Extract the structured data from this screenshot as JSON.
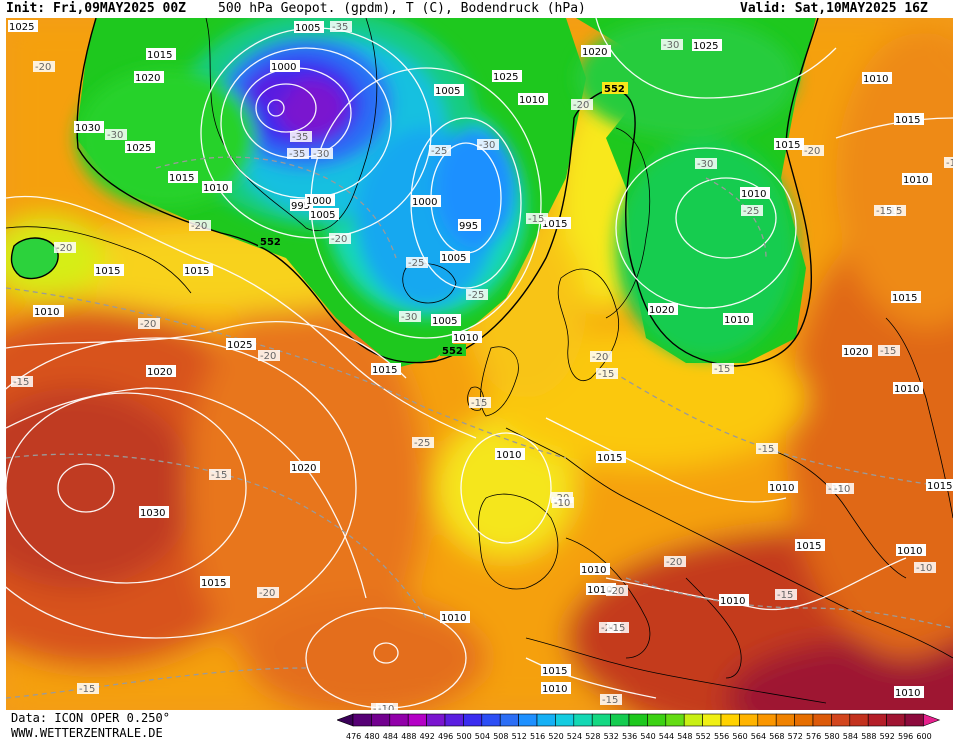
{
  "header": {
    "init": "Init: Fri,09MAY2025 00Z",
    "title": "500 hPa Geopot. (gpdm), T (C), Bodendruck (hPa)",
    "valid": "Valid: Sat,10MAY2025 16Z"
  },
  "footer": {
    "source": "Data: ICON OPER 0.250°",
    "website": "WWW.WETTERZENTRALE.DE"
  },
  "colorbar": {
    "levels": [
      "476",
      "480",
      "484",
      "488",
      "492",
      "496",
      "500",
      "504",
      "508",
      "512",
      "516",
      "520",
      "524",
      "528",
      "532",
      "536",
      "540",
      "544",
      "548",
      "552",
      "556",
      "560",
      "564",
      "568",
      "572",
      "576",
      "580",
      "584",
      "588",
      "592",
      "596",
      "600"
    ],
    "colors": [
      "#3a0058",
      "#560075",
      "#72008f",
      "#9200aa",
      "#b400c6",
      "#7a14cf",
      "#5a1ee0",
      "#3a2cf0",
      "#2c4ef5",
      "#2c6ef5",
      "#1e90ff",
      "#15b0f5",
      "#14cce0",
      "#14d8b4",
      "#14d882",
      "#14cc50",
      "#1ec81e",
      "#3cd214",
      "#64dc14",
      "#c8f014",
      "#f0f014",
      "#ffd200",
      "#ffb400",
      "#fa9600",
      "#f08200",
      "#e66e00",
      "#dc5a0a",
      "#d2461e",
      "#c3321e",
      "#b41e28",
      "#a01432",
      "#8c0a3c"
    ]
  },
  "map": {
    "contour_552": "552",
    "pressure_labels": [
      "1025",
      "1005",
      "1015",
      "1020",
      "1000",
      "1030",
      "1025",
      "1015",
      "1010",
      "1005",
      "995",
      "1010",
      "1000",
      "1005",
      "1020",
      "1015",
      "1010",
      "1025",
      "1020",
      "1025",
      "1010",
      "1005",
      "995",
      "1000",
      "1005",
      "1010",
      "1015",
      "552",
      "552",
      "1030",
      "1025",
      "1020",
      "1015",
      "1020",
      "1015",
      "1010",
      "1015",
      "1010",
      "1015",
      "1010",
      "1015",
      "1010",
      "1015",
      "1010",
      "1015",
      "1010",
      "1020",
      "1015",
      "1010",
      "1015",
      "1010",
      "1015",
      "1010",
      "1010",
      "1015",
      "1010",
      "1010",
      "1010",
      "1010"
    ],
    "temperature_labels": [
      "-35",
      "-20",
      "-30",
      "-35",
      "-30",
      "-35",
      "-30",
      "-25",
      "-25",
      "-25",
      "-30",
      "-20",
      "-20",
      "-20",
      "-30",
      "-30",
      "-20",
      "-25",
      "-20",
      "-15",
      "-15",
      "-20",
      "-20",
      "-20",
      "-20",
      "-25",
      "-20",
      "-15",
      "-15",
      "-15",
      "-15",
      "-20",
      "-20",
      "-15",
      "-20",
      "-15",
      "-15",
      "-15",
      "-15",
      "-15",
      "-10",
      "-10",
      "-10",
      "-10",
      "-15",
      "-15",
      "-15",
      "-10",
      "-15"
    ]
  }
}
